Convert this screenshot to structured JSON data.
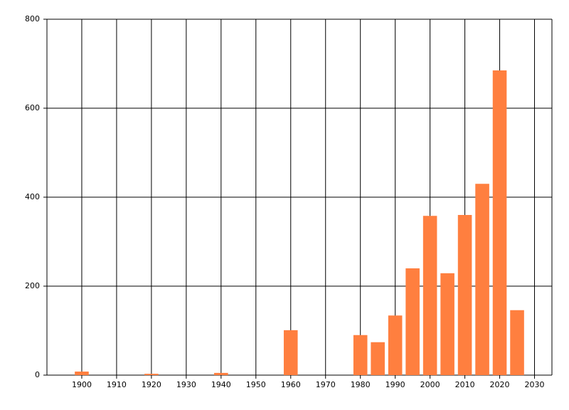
{
  "chart_data": {
    "type": "bar",
    "x": [
      1900,
      1920,
      1940,
      1960,
      1980,
      1985,
      1990,
      1995,
      2000,
      2005,
      2010,
      2015,
      2020,
      2025
    ],
    "values": [
      8,
      3,
      5,
      101,
      90,
      74,
      134,
      240,
      358,
      229,
      360,
      430,
      685,
      146
    ],
    "color": "#ff7f3f",
    "bar_width": 4,
    "xlim": [
      1890,
      2035
    ],
    "xticks": [
      1900,
      1910,
      1920,
      1930,
      1940,
      1950,
      1960,
      1970,
      1980,
      1990,
      2000,
      2010,
      2020,
      2030
    ],
    "ylim": [
      0,
      800
    ],
    "yticks": [
      0,
      200,
      400,
      600,
      800
    ],
    "grid": true
  }
}
